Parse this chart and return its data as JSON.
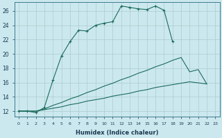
{
  "xlabel": "Humidex (Indice chaleur)",
  "background_color": "#cce8ef",
  "grid_color": "#aacccc",
  "line_color": "#1a6b5a",
  "xlim": [
    -0.5,
    23.5
  ],
  "ylim": [
    11.2,
    27.2
  ],
  "yticks": [
    12,
    14,
    16,
    18,
    20,
    22,
    24,
    26
  ],
  "xticks": [
    0,
    1,
    2,
    3,
    4,
    5,
    6,
    7,
    8,
    9,
    10,
    11,
    12,
    13,
    14,
    15,
    16,
    17,
    18,
    19,
    20,
    21,
    22,
    23
  ],
  "line1_x": [
    0,
    1,
    2,
    3,
    4,
    5,
    6,
    7,
    8,
    9,
    10,
    11,
    12,
    13,
    14,
    15,
    16,
    17,
    18
  ],
  "line1_y": [
    12,
    12,
    11.8,
    12.5,
    16.3,
    19.7,
    21.7,
    23.3,
    23.2,
    24.0,
    24.3,
    24.5,
    26.7,
    26.5,
    26.3,
    26.2,
    26.7,
    26.1,
    21.7
  ],
  "line2_x": [
    0,
    1,
    2,
    3,
    4,
    5,
    6,
    7,
    8,
    9,
    10,
    11,
    12,
    13,
    14,
    15,
    16,
    17,
    18,
    19,
    20,
    21,
    22
  ],
  "line2_y": [
    12,
    12,
    12,
    12.3,
    12.8,
    13.2,
    13.7,
    14.1,
    14.6,
    15.0,
    15.5,
    15.9,
    16.4,
    16.8,
    17.3,
    17.7,
    18.2,
    18.6,
    19.1,
    19.5,
    17.5,
    17.8,
    15.8
  ],
  "line3_x": [
    0,
    1,
    2,
    3,
    4,
    5,
    6,
    7,
    8,
    9,
    10,
    11,
    12,
    13,
    14,
    15,
    16,
    17,
    18,
    19,
    20,
    22
  ],
  "line3_y": [
    12,
    12,
    12,
    12.2,
    12.4,
    12.6,
    12.9,
    13.1,
    13.4,
    13.6,
    13.8,
    14.1,
    14.3,
    14.5,
    14.8,
    15.0,
    15.3,
    15.5,
    15.7,
    15.9,
    16.1,
    15.8
  ]
}
